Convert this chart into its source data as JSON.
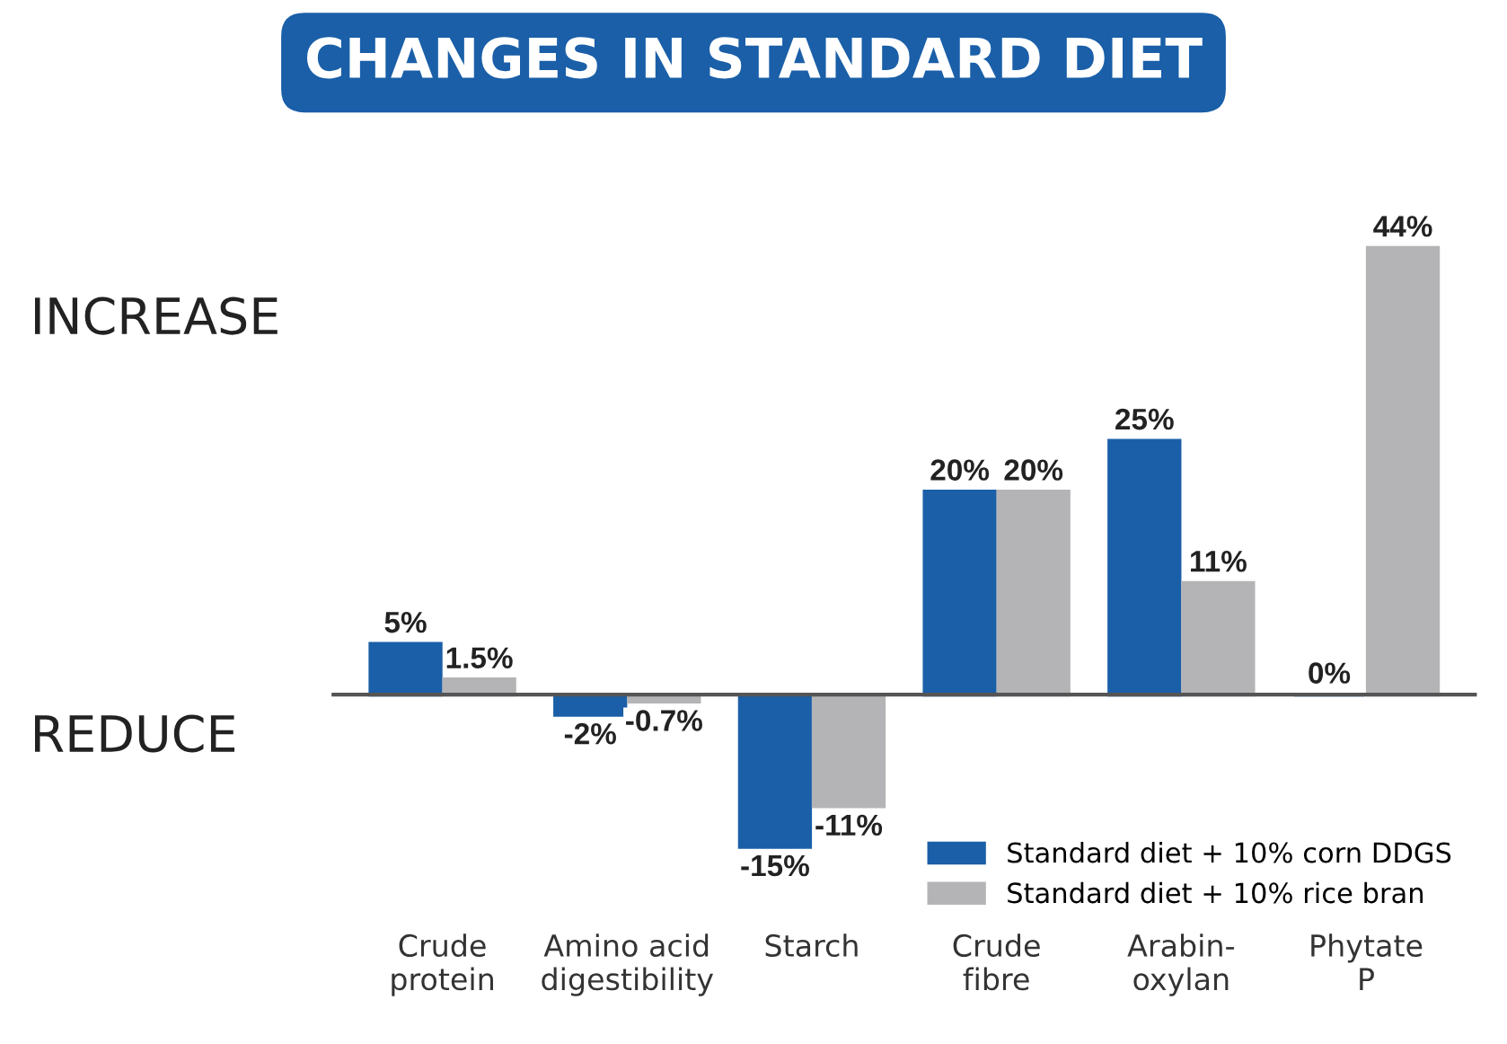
{
  "chart_data": {
    "type": "bar",
    "title": "CHANGES IN STANDARD DIET",
    "categories": [
      "Crude protein",
      "Amino acid digestibility",
      "Starch",
      "Crude fibre",
      "Arabin-oxylan",
      "Phytate P"
    ],
    "series": [
      {
        "name": "Standard diet + 10% corn DDGS",
        "color": "#1a5fa8",
        "values": [
          5,
          -2,
          -15,
          20,
          25,
          0
        ],
        "value_labels": [
          "5%",
          "-2%",
          "-15%",
          "20%",
          "25%",
          "0%"
        ]
      },
      {
        "name": "Standard diet + 10% rice bran",
        "color": "#b4b4b6",
        "values": [
          1.5,
          -0.7,
          -11,
          20,
          11,
          44
        ],
        "value_labels": [
          "1.5%",
          "-0.7%",
          "-11%",
          "20%",
          "11%",
          "44%"
        ]
      }
    ],
    "annotations": [
      "INCREASE",
      "REDUCE"
    ],
    "legend": "bottom right",
    "grid": false
  }
}
